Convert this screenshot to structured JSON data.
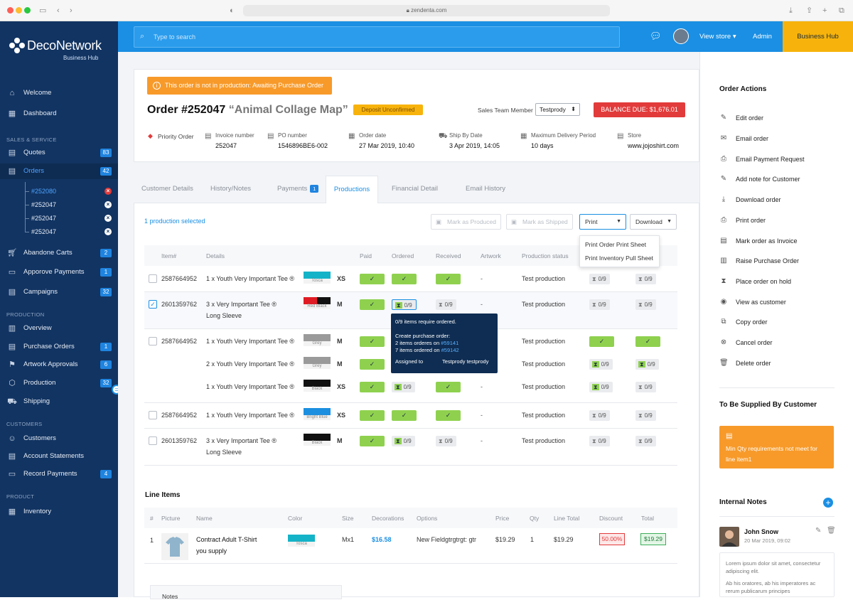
{
  "browser": {
    "url": "zendenta.com"
  },
  "sidebar": {
    "brand": "DecoNetwork",
    "brand_sub": "Business Hub",
    "nav_top": [
      {
        "label": "Welcome",
        "icon": "home-icon"
      },
      {
        "label": "Dashboard",
        "icon": "dashboard-icon"
      }
    ],
    "section_sales": "SALES & SERVICE",
    "quotes": {
      "label": "Quotes",
      "badge": "83"
    },
    "orders": {
      "label": "Orders",
      "badge": "42"
    },
    "order_sub": [
      "#252080",
      "#252047",
      "#252047",
      "#252047"
    ],
    "sales_rest": [
      {
        "label": "Abandone Carts",
        "badge": "2"
      },
      {
        "label": "Apporove Payments",
        "badge": "1"
      },
      {
        "label": "Campaigns",
        "badge": "32"
      }
    ],
    "section_production": "PRODUCTION",
    "production_items": [
      {
        "label": "Overview",
        "badge": ""
      },
      {
        "label": "Purchase Orders",
        "badge": "1"
      },
      {
        "label": "Artwork Approvals",
        "badge": "6"
      },
      {
        "label": "Production",
        "badge": "32"
      },
      {
        "label": "Shipping",
        "badge": ""
      }
    ],
    "section_customers": "CUSTOMERS",
    "customer_items": [
      {
        "label": "Customers",
        "badge": ""
      },
      {
        "label": "Account Statements",
        "badge": ""
      },
      {
        "label": "Record Payments",
        "badge": "4"
      }
    ],
    "section_product": "PRODUCT",
    "product_items": [
      {
        "label": "Inventory",
        "badge": ""
      }
    ]
  },
  "topbar": {
    "search_placeholder": "Type to search",
    "view_store": "View store",
    "admin": "Admin",
    "business_hub": "Business Hub"
  },
  "order": {
    "warning_prefix": "This order is not in production:",
    "warning_status": "Awaiting Purchase Order",
    "title": "Order #252047",
    "subtitle": "“Animal Collage Map”",
    "deposit_badge": "Deposit Unconfirmed",
    "sales_team_label": "Sales Team Member",
    "sales_team_value": "Testprody",
    "balance": "BALANCE DUE: $1,676.01",
    "priority": "Priority Order",
    "meta": [
      {
        "label": "Invoice number",
        "value": "252047"
      },
      {
        "label": "PO number",
        "value": "1546896BE6-002"
      },
      {
        "label": "Order date",
        "value": "27 Mar 2019, 10:40"
      },
      {
        "label": "Ship By Date",
        "value": "3 Apr 2019, 14:05"
      },
      {
        "label": "Maximum Delivery Period",
        "value": "10 days"
      },
      {
        "label": "Store",
        "value": "www.jojoshirt.com"
      }
    ]
  },
  "tabs": {
    "customer_details": "Customer Details",
    "history": "History/Notes",
    "payments": "Payments",
    "payments_badge": "1",
    "productions": "Productions",
    "financial": "Financial Detail",
    "email_history": "Email History"
  },
  "productions": {
    "selected_text": "1 production selected",
    "mark_produced": "Mark as Produced",
    "mark_shipped": "Mark as Shipped",
    "print": "Print",
    "download": "Download",
    "print_menu": [
      "Print Order Print Sheet",
      "Print Inventory Pull Sheet"
    ],
    "headers": [
      "Item#",
      "Details",
      "Paid",
      "Ordered",
      "Received",
      "Artwork",
      "Production status"
    ],
    "rows": [
      {
        "item": "2587664952",
        "details": "1 x Youth Very Important Tee ®",
        "details2": "",
        "color_name": "Tosca",
        "color": "#15b3c8",
        "color2": "",
        "size": "XS",
        "status": "Test production",
        "artwork": "-",
        "c1": "0/9",
        "c2": "0/9"
      },
      {
        "item": "2601359762",
        "details": "3 x Very Important Tee ®",
        "details2": "Long Sleeve",
        "color_name": "Red Black",
        "color": "#e01b24",
        "color2": "#111111",
        "size": "M",
        "status": "Test production",
        "artwork": "-",
        "c1": "0/9",
        "c2": "0/9",
        "ordered": "0/9",
        "received": "0/9"
      },
      {
        "item": "2587664952",
        "details": "1 x Youth Very Important Tee ®",
        "details2": "",
        "color_name": "Grey",
        "color": "#9a9a9a",
        "color2": "",
        "size": "M",
        "status": "Test production",
        "artwork": "-"
      },
      {
        "item": "",
        "details": "2 x Youth Very Important Tee ®",
        "details2": "",
        "color_name": "Grey",
        "color": "#9a9a9a",
        "color2": "",
        "size": "M",
        "status": "Test production",
        "artwork": "",
        "c1": "0/9",
        "c2": "0/9"
      },
      {
        "item": "",
        "details": "1 x Youth Very Important Tee ®",
        "details2": "",
        "color_name": "Black",
        "color": "#111111",
        "color2": "",
        "size": "XS",
        "status": "Test production",
        "artwork": "-",
        "ordered": "0/9",
        "c1": "0/9",
        "c2": "0/9"
      },
      {
        "item": "2587664952",
        "details": "1 x Youth Very Important Tee ®",
        "details2": "",
        "color_name": "Bright Blue",
        "color": "#1c8fe0",
        "color2": "",
        "size": "XS",
        "status": "Test production",
        "artwork": "-",
        "c1": "0/9",
        "c2": "0/9"
      },
      {
        "item": "2601359762",
        "details": "3 x Very Important Tee ®",
        "details2": "Long Sleeve",
        "color_name": "Black",
        "color": "#111111",
        "color2": "",
        "size": "M",
        "status": "Test production",
        "artwork": "-",
        "ordered": "0/9",
        "received": "0/9",
        "c1": "0/9",
        "c2": "0/9"
      }
    ],
    "tooltip": {
      "line1": "0/9 items require ordered.",
      "line2": "Create purchase order:",
      "line3a": "2 items orderes on",
      "line3b": "#59141",
      "line4a": "7 items ordered on",
      "line4b": "#59142",
      "assigned_label": "Assigned to",
      "assigned_value": "Testprody testprody"
    }
  },
  "line_items": {
    "title": "Line Items",
    "headers": [
      "#",
      "Picture",
      "Name",
      "Color",
      "Size",
      "Decorations",
      "Options",
      "Price",
      "Qty",
      "Line Total",
      "Discount",
      "Total"
    ],
    "row": {
      "num": "1",
      "name": "Contract Adult T-Shirt",
      "name2": "you supply",
      "color_name": "Tosca",
      "size": "Mx1",
      "decorations": "$16.58",
      "options": "New Fieldgtrgtrgt: gtr",
      "price": "$19.29",
      "qty": "1",
      "line_total": "$19.29",
      "discount": "50.00%",
      "total": "$19.29"
    },
    "notes_label": "Notes"
  },
  "right": {
    "actions_title": "Order Actions",
    "actions": [
      {
        "label": "Edit order",
        "icon": "pencil-icon"
      },
      {
        "label": "Email order",
        "icon": "envelope-icon"
      },
      {
        "label": "Email Payment Request",
        "icon": "payment-request-icon"
      },
      {
        "label": "Add note for Customer",
        "icon": "note-icon"
      },
      {
        "label": "Download order",
        "icon": "download-icon"
      },
      {
        "label": "Print order",
        "icon": "printer-icon"
      },
      {
        "label": "Mark order as Invoice",
        "icon": "invoice-icon"
      },
      {
        "label": "Raise Purchase Order",
        "icon": "purchase-order-icon"
      },
      {
        "label": "Place order on hold",
        "icon": "hold-icon"
      },
      {
        "label": "View as customer",
        "icon": "eye-icon"
      },
      {
        "label": "Copy order",
        "icon": "copy-icon"
      },
      {
        "label": "Cancel order",
        "icon": "cancel-icon"
      },
      {
        "label": "Delete order",
        "icon": "trash-icon"
      }
    ],
    "supplied_title": "To Be Supplied By Customer",
    "supplied_text": "Min Qty requirements not meet for line item1",
    "notes_title": "Internal Notes",
    "note": {
      "author": "John Snow",
      "date": "20 Mar 2019, 09:02",
      "text1": "Lorem ipsum dolor sit amet, consectetur adipiscing elit.",
      "text2": "Ab his oratores, ab his imperatores ac rerum publicarum principes"
    }
  },
  "colors": {
    "accent": "#1a8fe3",
    "sidebar": "#123462",
    "warning": "#f79a2a",
    "danger": "#e23b3b",
    "success": "#8fd14f",
    "hub": "#f7b30b"
  }
}
